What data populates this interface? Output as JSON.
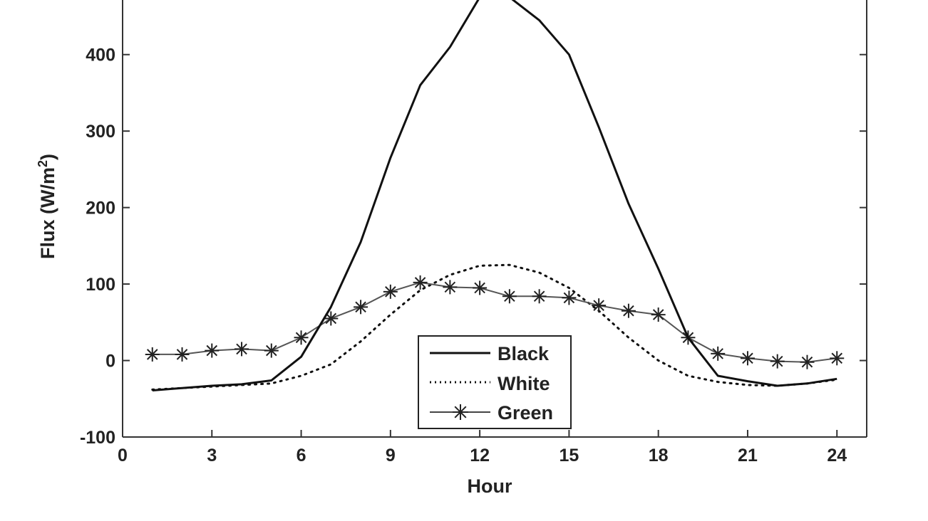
{
  "chart_data": {
    "type": "line",
    "xlabel": "Hour",
    "ylabel": "Flux (W/m",
    "ylabel_superscript": "2",
    "ylabel_suffix": ")",
    "xlim": [
      0,
      25
    ],
    "ylim": [
      -100,
      490
    ],
    "xticks": [
      "0",
      "3",
      "6",
      "9",
      "12",
      "15",
      "18",
      "21",
      "24"
    ],
    "yticks": [
      "-100",
      "0",
      "100",
      "200",
      "300",
      "400"
    ],
    "grid": false,
    "legend_position": "bottom-center",
    "series": [
      {
        "name": "Black",
        "style": "solid",
        "x": [
          1,
          2,
          3,
          4,
          5,
          6,
          7,
          8,
          9,
          10,
          11,
          12,
          13,
          14,
          15,
          16,
          17,
          18,
          19,
          20,
          21,
          22,
          23,
          24
        ],
        "y": [
          -39,
          -36,
          -33,
          -31,
          -26,
          5,
          70,
          155,
          265,
          360,
          410,
          475,
          475,
          445,
          400,
          305,
          205,
          120,
          30,
          -20,
          -27,
          -33,
          -30,
          -24
        ]
      },
      {
        "name": "White",
        "style": "dotted",
        "x": [
          1,
          2,
          3,
          4,
          5,
          6,
          7,
          8,
          9,
          10,
          11,
          12,
          13,
          14,
          15,
          16,
          17,
          18,
          19,
          20,
          21,
          22,
          23,
          24
        ],
        "y": [
          -38,
          -36,
          -34,
          -32,
          -30,
          -20,
          -5,
          25,
          60,
          92,
          112,
          124,
          125,
          115,
          95,
          65,
          30,
          0,
          -20,
          -28,
          -32,
          -33,
          -30,
          -25
        ]
      },
      {
        "name": "Green",
        "style": "solid-star",
        "x": [
          1,
          2,
          3,
          4,
          5,
          6,
          7,
          8,
          9,
          10,
          11,
          12,
          13,
          14,
          15,
          16,
          17,
          18,
          19,
          20,
          21,
          22,
          23,
          24
        ],
        "y": [
          8,
          8,
          13,
          15,
          13,
          30,
          55,
          70,
          90,
          102,
          96,
          95,
          84,
          84,
          82,
          72,
          65,
          60,
          30,
          9,
          3,
          -1,
          -2,
          3
        ]
      }
    ]
  }
}
